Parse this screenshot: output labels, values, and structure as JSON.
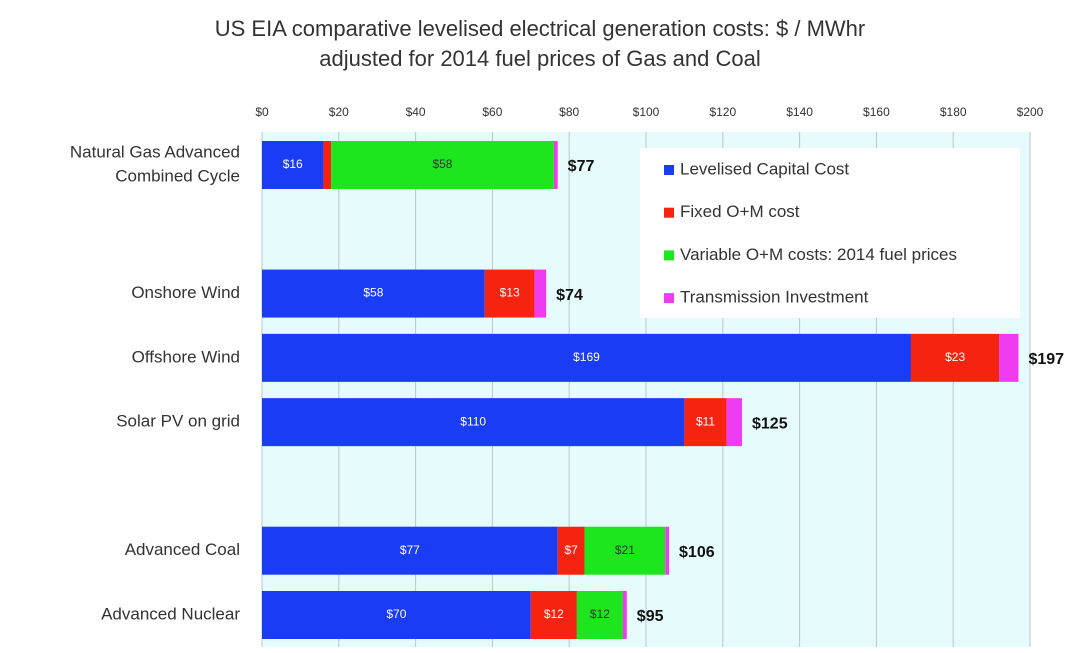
{
  "chart_data": {
    "type": "stacked-barh",
    "title": [
      "US EIA comparative levelised electrical generation costs:  $ / MWhr",
      "adjusted for 2014 fuel prices of Gas and Coal"
    ],
    "categories": [
      [
        "Natural Gas Advanced",
        "Combined Cycle"
      ],
      null,
      [
        "Onshore Wind"
      ],
      [
        "Offshore Wind"
      ],
      [
        "Solar PV on grid"
      ],
      null,
      [
        "Advanced Coal"
      ],
      [
        "Advanced Nuclear"
      ]
    ],
    "series": [
      {
        "name": "Levelised Capital Cost",
        "color": "#1a3cf5",
        "values": [
          16,
          null,
          58,
          169,
          110,
          null,
          77,
          70
        ],
        "value_labels": [
          "$16",
          null,
          "$58",
          "$169",
          "$110",
          null,
          "$77",
          "$70"
        ]
      },
      {
        "name": "Fixed O+M cost",
        "color": "#f5230f",
        "values": [
          2,
          null,
          13,
          23,
          11,
          null,
          7,
          12
        ],
        "value_labels": [
          null,
          null,
          "$13",
          "$23",
          "$11",
          null,
          "$7",
          "$12"
        ]
      },
      {
        "name": "Variable O+M costs: 2014 fuel prices",
        "color": "#1ee61e",
        "values": [
          58,
          null,
          null,
          null,
          null,
          null,
          21,
          12
        ],
        "value_labels": [
          "$58",
          null,
          null,
          null,
          null,
          null,
          "$21",
          "$12"
        ]
      },
      {
        "name": "Transmission Investment",
        "color": "#f03cf0",
        "values": [
          1,
          null,
          3,
          5,
          4,
          null,
          1,
          1
        ],
        "value_labels": [
          null,
          null,
          null,
          null,
          null,
          null,
          null,
          null
        ]
      }
    ],
    "total_labels": [
      "$77",
      null,
      "$74",
      "$197",
      "$125",
      null,
      "$106",
      "$95"
    ],
    "xlim": [
      0,
      200
    ],
    "xticks": [
      {
        "value": 0,
        "label": "$0"
      },
      {
        "value": 20,
        "label": "$20"
      },
      {
        "value": 40,
        "label": "$40"
      },
      {
        "value": 60,
        "label": "$60"
      },
      {
        "value": 80,
        "label": "$80"
      },
      {
        "value": 100,
        "label": "$100"
      },
      {
        "value": 120,
        "label": "$120"
      },
      {
        "value": 140,
        "label": "$140"
      },
      {
        "value": 160,
        "label": "$160"
      },
      {
        "value": 180,
        "label": "$180"
      },
      {
        "value": 200,
        "label": "$200"
      }
    ],
    "grid": true,
    "legend": "upper right"
  }
}
